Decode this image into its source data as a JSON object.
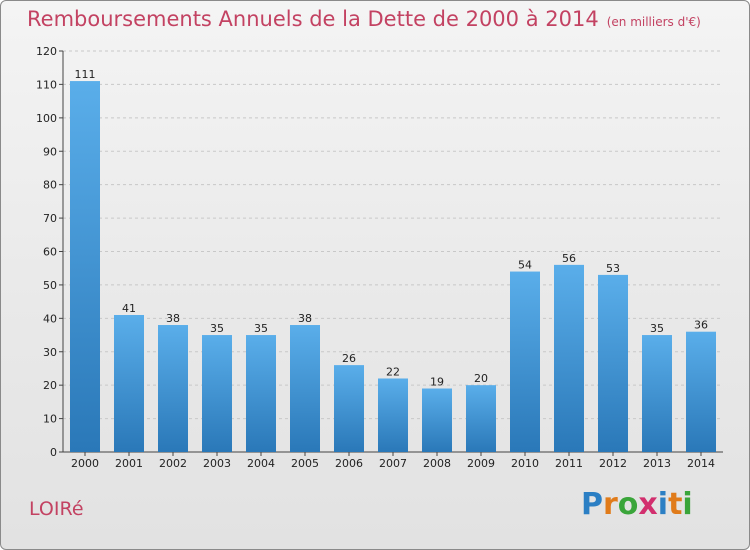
{
  "title": "Remboursements Annuels de la Dette de 2000 à 2014",
  "title_unit": "(en milliers d'€)",
  "commune": "LOIRé",
  "logo": {
    "text": "Proxiti",
    "letters": [
      {
        "ch": "P",
        "color": "#2b7fc4"
      },
      {
        "ch": "r",
        "color": "#e07b1a"
      },
      {
        "ch": "o",
        "color": "#3aa53a"
      },
      {
        "ch": "x",
        "color": "#d22f6e"
      },
      {
        "ch": "i",
        "color": "#2b7fc4"
      },
      {
        "ch": "t",
        "color": "#e07b1a"
      },
      {
        "ch": "i",
        "color": "#3aa53a"
      }
    ]
  },
  "colors": {
    "bar_light": "#5aaeea",
    "bar_dark": "#2a78b8",
    "title": "#c34262"
  },
  "chart_data": {
    "type": "bar",
    "title": "Remboursements Annuels de la Dette de 2000 à 2014",
    "categories": [
      "2000",
      "2001",
      "2002",
      "2003",
      "2004",
      "2005",
      "2006",
      "2007",
      "2008",
      "2009",
      "2010",
      "2011",
      "2012",
      "2013",
      "2014"
    ],
    "values": [
      111,
      41,
      38,
      35,
      35,
      38,
      26,
      22,
      19,
      20,
      54,
      56,
      53,
      35,
      36
    ],
    "ylim": [
      0,
      120
    ],
    "yticks": [
      0,
      10,
      20,
      30,
      40,
      50,
      60,
      70,
      80,
      90,
      100,
      110,
      120
    ],
    "grid": true
  }
}
